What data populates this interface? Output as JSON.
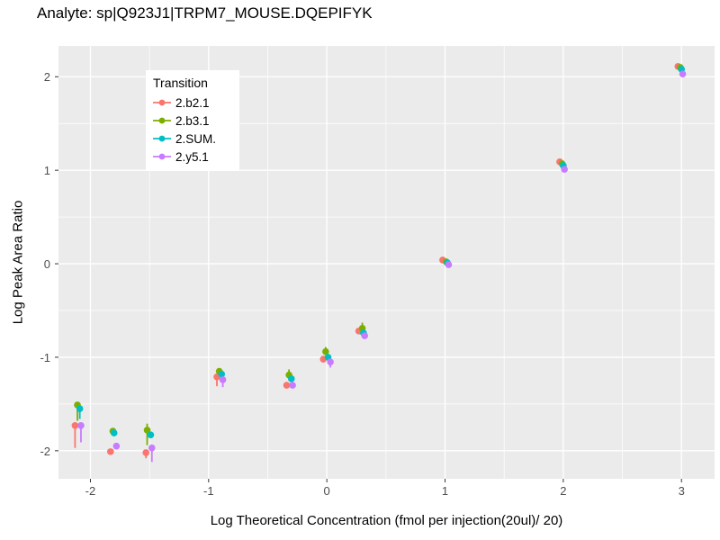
{
  "chart_data": {
    "type": "scatter",
    "title": "Analyte: sp|Q923J1|TRPM7_MOUSE.DQEPIFYK",
    "xlabel": "Log Theoretical Concentration (fmol per injection(20ul)/ 20)",
    "ylabel": "Log Peak Area Ratio",
    "xlim": [
      -2.27,
      3.28
    ],
    "ylim": [
      -2.3,
      2.33
    ],
    "x_ticks": [
      -2,
      -1,
      0,
      1,
      2,
      3
    ],
    "y_ticks": [
      -2,
      -1,
      0,
      1,
      2
    ],
    "x_minor_ticks": [
      -1.5,
      -0.5,
      0.5,
      1.5,
      2.5
    ],
    "y_minor_ticks": [
      -1.5,
      -0.5,
      0.5,
      1.5
    ],
    "grid": "major-and-minor",
    "panel_bg": "#EBEBEB",
    "grid_color": "#FFFFFF",
    "tick_color": "#333333",
    "tick_label_color": "#4D4D4D",
    "legend": {
      "title": "Transition",
      "position": "inside-top-left",
      "entries": [
        "2.b2.1",
        "2.b3.1",
        "2.SUM.",
        "2.y5.1"
      ]
    },
    "series": [
      {
        "name": "2.b2.1",
        "color": "#F8766D",
        "points": [
          {
            "x": -2.13,
            "y": -1.73,
            "lo": -1.97
          },
          {
            "x": -1.83,
            "y": -2.01
          },
          {
            "x": -1.53,
            "y": -2.02,
            "lo": -2.08
          },
          {
            "x": -0.93,
            "y": -1.21,
            "lo": -1.31
          },
          {
            "x": -0.34,
            "y": -1.3
          },
          {
            "x": -0.03,
            "y": -1.02
          },
          {
            "x": 0.27,
            "y": -0.72
          },
          {
            "x": 0.98,
            "y": 0.04
          },
          {
            "x": 1.97,
            "y": 1.09
          },
          {
            "x": 2.97,
            "y": 2.11
          }
        ]
      },
      {
        "name": "2.b3.1",
        "color": "#7CAE00",
        "points": [
          {
            "x": -2.11,
            "y": -1.51,
            "lo": -1.68
          },
          {
            "x": -1.81,
            "y": -1.79
          },
          {
            "x": -1.52,
            "y": -1.78,
            "hi": -1.71,
            "lo": -1.94
          },
          {
            "x": -0.91,
            "y": -1.15
          },
          {
            "x": -0.32,
            "y": -1.19,
            "hi": -1.13
          },
          {
            "x": -0.01,
            "y": -0.94,
            "hi": -0.89
          },
          {
            "x": 0.3,
            "y": -0.69,
            "hi": -0.63
          },
          {
            "x": 1.01,
            "y": 0.02
          },
          {
            "x": 1.99,
            "y": 1.07
          },
          {
            "x": 2.99,
            "y": 2.1
          }
        ]
      },
      {
        "name": "2.SUM.",
        "color": "#00BFC4",
        "points": [
          {
            "x": -2.09,
            "y": -1.55,
            "lo": -1.66
          },
          {
            "x": -1.8,
            "y": -1.81
          },
          {
            "x": -1.49,
            "y": -1.83
          },
          {
            "x": -0.89,
            "y": -1.18
          },
          {
            "x": -0.3,
            "y": -1.23
          },
          {
            "x": 0.01,
            "y": -1.0
          },
          {
            "x": 0.31,
            "y": -0.74
          },
          {
            "x": 1.02,
            "y": 0.01
          },
          {
            "x": 2.0,
            "y": 1.05
          },
          {
            "x": 3.0,
            "y": 2.08
          }
        ]
      },
      {
        "name": "2.y5.1",
        "color": "#C77CFF",
        "points": [
          {
            "x": -2.08,
            "y": -1.73,
            "lo": -1.91
          },
          {
            "x": -1.78,
            "y": -1.95
          },
          {
            "x": -1.48,
            "y": -1.97,
            "lo": -2.12
          },
          {
            "x": -0.88,
            "y": -1.24,
            "lo": -1.32
          },
          {
            "x": -0.29,
            "y": -1.3
          },
          {
            "x": 0.03,
            "y": -1.05,
            "lo": -1.11
          },
          {
            "x": 0.32,
            "y": -0.77
          },
          {
            "x": 1.03,
            "y": -0.01
          },
          {
            "x": 2.01,
            "y": 1.01
          },
          {
            "x": 3.01,
            "y": 2.03
          }
        ]
      }
    ]
  }
}
